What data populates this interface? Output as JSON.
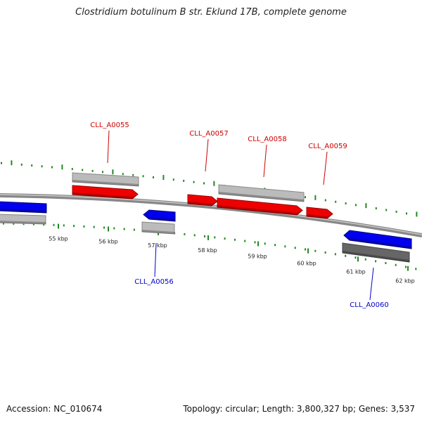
{
  "title": "Clostridium botulinum B str. Eklund 17B, complete genome",
  "footer": {
    "accession": "Accession: NC_010674",
    "stats": "Topology: circular; Length: 3,800,327 bp; Genes: 3,537"
  },
  "colors": {
    "forward_gene": "#ee0000",
    "reverse_gene": "#0000ee",
    "cds_feature": "#bbbbbb",
    "cds_feature_dark": "#666666",
    "backbone": "#888888",
    "ticks": "#228822",
    "forward_label": "#cc0000",
    "reverse_label": "#0000cc"
  },
  "scale": {
    "tick_labels": [
      "55 kbp",
      "56 kbp",
      "57 kbp",
      "58 kbp",
      "59 kbp",
      "60 kbp",
      "61 kbp",
      "62 kbp"
    ]
  },
  "genes": [
    {
      "id": "CLL_A0055",
      "strand": "forward"
    },
    {
      "id": "CLL_A0056",
      "strand": "reverse"
    },
    {
      "id": "CLL_A0057",
      "strand": "forward"
    },
    {
      "id": "CLL_A0058",
      "strand": "forward"
    },
    {
      "id": "CLL_A0059",
      "strand": "forward"
    },
    {
      "id": "CLL_A0060",
      "strand": "reverse"
    }
  ]
}
